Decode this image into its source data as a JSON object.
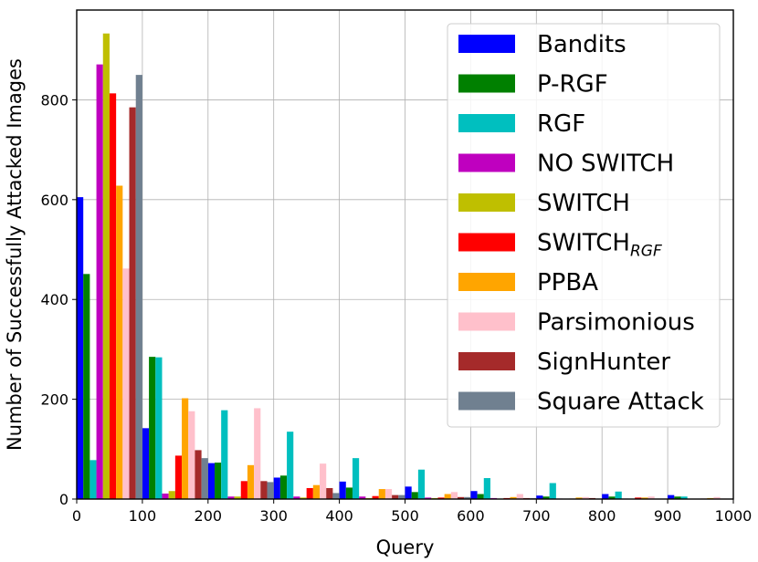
{
  "chart_data": {
    "type": "bar",
    "xlabel": "Query",
    "ylabel": "Number of Successfully Attacked Images",
    "xlim": [
      0,
      1000
    ],
    "ylim": [
      0,
      980
    ],
    "xticks": [
      0,
      100,
      200,
      300,
      400,
      500,
      600,
      700,
      800,
      900,
      1000
    ],
    "yticks": [
      0,
      200,
      400,
      600,
      800
    ],
    "grid": true,
    "legend_position": "top-right",
    "bin_width": 100,
    "bin_starts": [
      0,
      100,
      200,
      300,
      400,
      500,
      600,
      700,
      800,
      900
    ],
    "series": [
      {
        "name": "Bandits",
        "color": "#0000ff",
        "values": [
          605,
          142,
          72,
          43,
          35,
          25,
          16,
          7,
          10,
          8
        ]
      },
      {
        "name": "P-RGF",
        "color": "#008000",
        "values": [
          451,
          285,
          73,
          47,
          23,
          14,
          10,
          5,
          5,
          5
        ]
      },
      {
        "name": "RGF",
        "color": "#00bfbf",
        "values": [
          78,
          284,
          178,
          135,
          82,
          59,
          42,
          32,
          15,
          5
        ]
      },
      {
        "name": "NO SWITCH",
        "color": "#bf00bf",
        "values": [
          871,
          11,
          5,
          5,
          5,
          3,
          2,
          1,
          1,
          0
        ]
      },
      {
        "name": "SWITCH",
        "color": "#bfbf00",
        "values": [
          933,
          16,
          5,
          3,
          2,
          2,
          1,
          0,
          0,
          0
        ]
      },
      {
        "name": "SWITCH",
        "name_subscript": "RGF",
        "color": "#ff0000",
        "values": [
          813,
          87,
          36,
          22,
          6,
          3,
          2,
          1,
          3,
          1
        ]
      },
      {
        "name": "PPBA",
        "color": "#ffa500",
        "values": [
          628,
          202,
          68,
          28,
          20,
          10,
          4,
          3,
          3,
          2
        ]
      },
      {
        "name": "Parsimonious",
        "color": "#ffc0cb",
        "values": [
          462,
          176,
          182,
          71,
          20,
          14,
          10,
          4,
          5,
          4
        ]
      },
      {
        "name": "SignHunter",
        "color": "#a52a2a",
        "values": [
          785,
          98,
          36,
          22,
          8,
          4,
          2,
          2,
          1,
          1
        ]
      },
      {
        "name": "Square Attack",
        "color": "#708090",
        "values": [
          850,
          82,
          34,
          12,
          8,
          4,
          2,
          1,
          1,
          1
        ]
      }
    ]
  }
}
